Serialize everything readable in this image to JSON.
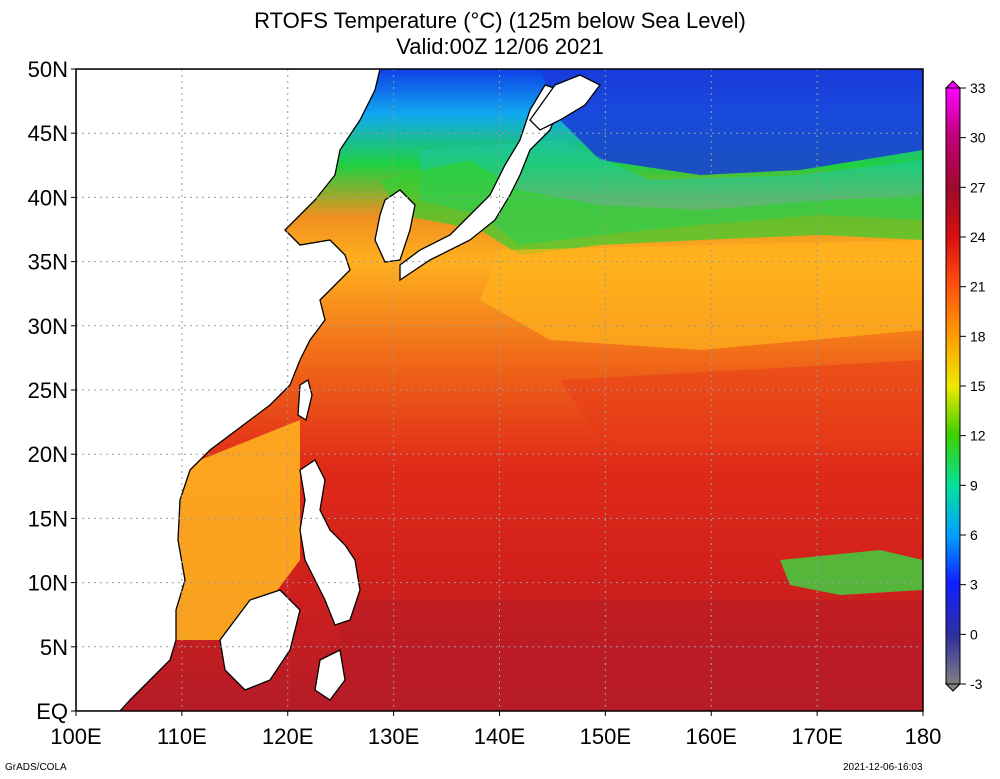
{
  "title_line1": "RTOFS Temperature (°C) (125m below Sea Level)",
  "title_line2": "Valid:00Z 12/06 2021",
  "x_ticks": [
    "100E",
    "110E",
    "120E",
    "130E",
    "140E",
    "150E",
    "160E",
    "170E",
    "180"
  ],
  "y_ticks": [
    "50N",
    "45N",
    "40N",
    "35N",
    "30N",
    "25N",
    "20N",
    "15N",
    "10N",
    "5N",
    "EQ"
  ],
  "lon_range": [
    100,
    180
  ],
  "lat_range": [
    0,
    50
  ],
  "grid": true,
  "colorbar": {
    "labels": [
      "33",
      "30",
      "27",
      "24",
      "21",
      "18",
      "15",
      "12",
      "9",
      "6",
      "3",
      "0",
      "-3"
    ],
    "range": [
      -3,
      33
    ],
    "colors": [
      "#ff00ff",
      "#d0009a",
      "#9e0a2a",
      "#c41010",
      "#ee2810",
      "#ff6a10",
      "#ffa000",
      "#ffd200",
      "#f0f000",
      "#a0e000",
      "#00cc00",
      "#00e0a0",
      "#00b0f0",
      "#0060ff",
      "#1010ff",
      "#4040a0",
      "#707070"
    ]
  },
  "footer_left": "GrADS/COLA",
  "footer_right": "2021-12-06-16:03",
  "colors": {
    "land": "#ffffff",
    "coast": "#000000",
    "warm_pool": "#e02818",
    "tropics_deep": "#c8201c",
    "subtropical": "#f08a10",
    "mid_lat": "#ffd000",
    "kuroshio_ext": "#20d020",
    "cold_north": "#0030e0"
  }
}
